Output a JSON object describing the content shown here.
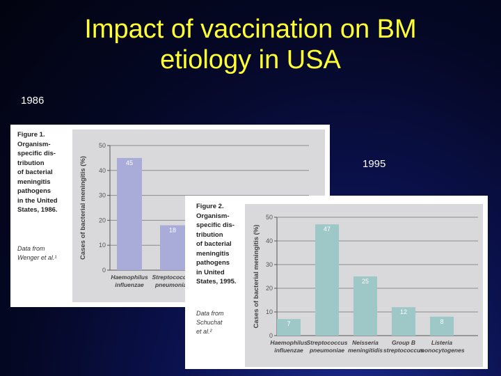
{
  "slide": {
    "title_line1": "Impact of vaccination on BM",
    "title_line2": "etiology in USA",
    "year_left": "1986",
    "year_right": "1995"
  },
  "colors": {
    "title": "#ffff33",
    "bar_1986": "#a9acd8",
    "bar_1995": "#9ec7c8",
    "panel_bg": "#d9d9db"
  },
  "fig1": {
    "caption": [
      "Figure 1.",
      "Organism-",
      "specific dis-",
      "tribution",
      "of bacterial",
      "meningitis",
      "pathogens",
      "in the United",
      "States, 1986."
    ],
    "source": [
      "Data from",
      "Wenger et al.¹"
    ]
  },
  "fig2": {
    "caption": [
      "Figure 2.",
      "Organism-",
      "specific dis-",
      "tribution",
      "of bacterial",
      "meningitis",
      "pathogens",
      "in United",
      "States, 1995."
    ],
    "source": [
      "Data from",
      "Schuchat",
      "et al.²"
    ]
  },
  "chart_data": [
    {
      "type": "bar",
      "title": "",
      "ylabel": "Cases of bacterial meningitis (%)",
      "ylim": [
        0,
        50
      ],
      "yticks": [
        0,
        10,
        20,
        30,
        40,
        50
      ],
      "grid": true,
      "categories": [
        [
          "Haemophilus",
          "influenzae"
        ],
        [
          "Streptococcus",
          "pneumoniae"
        ]
      ],
      "values": [
        45,
        18
      ],
      "data_labels": [
        "45",
        "18"
      ]
    },
    {
      "type": "bar",
      "title": "",
      "ylabel": "Cases of bacterial meningitis (%)",
      "ylim": [
        0,
        50
      ],
      "yticks": [
        0,
        10,
        20,
        30,
        40,
        50
      ],
      "grid": true,
      "categories": [
        [
          "Haemophilus",
          "influenzae"
        ],
        [
          "Streptococcus",
          "pneumoniae"
        ],
        [
          "Neisseria",
          "meningitidis"
        ],
        [
          "Group B",
          "streptococcus"
        ],
        [
          "Listeria",
          "monocytogenes"
        ]
      ],
      "values": [
        7,
        47,
        25,
        12,
        8
      ],
      "data_labels": [
        "7",
        "47",
        "25",
        "12",
        "8"
      ]
    }
  ]
}
